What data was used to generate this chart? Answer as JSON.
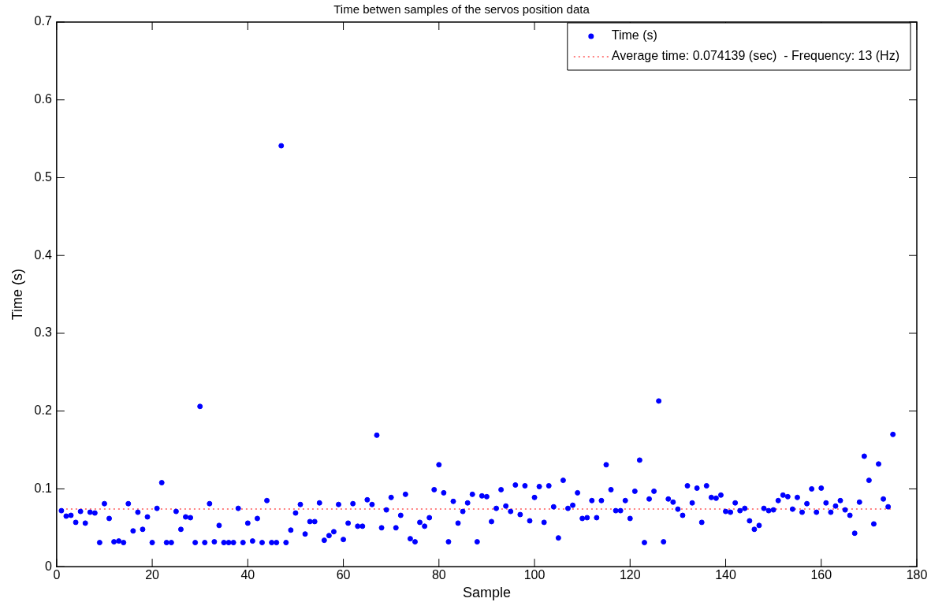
{
  "chart_data": {
    "type": "scatter",
    "title": "Time betwen samples of the servos position data",
    "xlabel": "Sample",
    "ylabel": "Time (s)",
    "x": [
      1,
      2,
      3,
      4,
      5,
      6,
      7,
      8,
      9,
      10,
      11,
      12,
      13,
      14,
      15,
      16,
      17,
      18,
      19,
      20,
      21,
      22,
      23,
      24,
      25,
      26,
      27,
      28,
      29,
      30,
      31,
      32,
      33,
      34,
      35,
      36,
      37,
      38,
      39,
      40,
      41,
      42,
      43,
      44,
      45,
      46,
      47,
      48,
      49,
      50,
      51,
      52,
      53,
      54,
      55,
      56,
      57,
      58,
      59,
      60,
      61,
      62,
      63,
      64,
      65,
      66,
      67,
      68,
      69,
      70,
      71,
      72,
      73,
      74,
      75,
      76,
      77,
      78,
      79,
      80,
      81,
      82,
      83,
      84,
      85,
      86,
      87,
      88,
      89,
      90,
      91,
      92,
      93,
      94,
      95,
      96,
      97,
      98,
      99,
      100,
      101,
      102,
      103,
      104,
      105,
      106,
      107,
      108,
      109,
      110,
      111,
      112,
      113,
      114,
      115,
      116,
      117,
      118,
      119,
      120,
      121,
      122,
      123,
      124,
      125,
      126,
      127,
      128,
      129,
      130,
      131,
      132,
      133,
      134,
      135,
      136,
      137,
      138,
      139,
      140,
      141,
      142,
      143,
      144,
      145,
      146,
      147,
      148,
      149,
      150,
      151,
      152,
      153,
      154,
      155,
      156,
      157,
      158,
      159,
      160,
      161,
      162,
      163,
      164,
      165,
      166,
      167,
      168,
      169,
      170,
      171,
      172,
      173,
      174,
      175
    ],
    "series": [
      {
        "name": "Time (s)",
        "color": "#0000ff",
        "values": [
          0.072,
          0.065,
          0.066,
          0.057,
          0.071,
          0.056,
          0.07,
          0.069,
          0.031,
          0.081,
          0.062,
          0.032,
          0.033,
          0.031,
          0.081,
          0.046,
          0.07,
          0.048,
          0.064,
          0.031,
          0.075,
          0.108,
          0.031,
          0.031,
          0.071,
          0.048,
          0.064,
          0.063,
          0.031,
          0.206,
          0.031,
          0.081,
          0.032,
          0.053,
          0.031,
          0.031,
          0.031,
          0.075,
          0.031,
          0.056,
          0.033,
          0.062,
          0.031,
          0.085,
          0.031,
          0.031,
          0.541,
          0.031,
          0.047,
          0.069,
          0.08,
          0.042,
          0.058,
          0.058,
          0.082,
          0.034,
          0.04,
          0.045,
          0.08,
          0.035,
          0.056,
          0.081,
          0.052,
          0.052,
          0.086,
          0.08,
          0.169,
          0.05,
          0.073,
          0.089,
          0.05,
          0.066,
          0.093,
          0.036,
          0.032,
          0.057,
          0.052,
          0.063,
          0.099,
          0.131,
          0.095,
          0.032,
          0.084,
          0.056,
          0.071,
          0.082,
          0.093,
          0.032,
          0.091,
          0.09,
          0.058,
          0.075,
          0.099,
          0.078,
          0.071,
          0.105,
          0.067,
          0.104,
          0.059,
          0.089,
          0.103,
          0.057,
          0.104,
          0.077,
          0.037,
          0.111,
          0.075,
          0.079,
          0.095,
          0.062,
          0.063,
          0.085,
          0.063,
          0.085,
          0.131,
          0.099,
          0.072,
          0.072,
          0.085,
          0.062,
          0.097,
          0.137,
          0.031,
          0.087,
          0.097,
          0.213,
          0.032,
          0.087,
          0.083,
          0.074,
          0.066,
          0.104,
          0.082,
          0.101,
          0.057,
          0.104,
          0.089,
          0.088,
          0.092,
          0.071,
          0.07,
          0.082,
          0.072,
          0.075,
          0.059,
          0.048,
          0.053,
          0.075,
          0.072,
          0.073,
          0.085,
          0.092,
          0.09,
          0.074,
          0.089,
          0.07,
          0.081,
          0.1,
          0.07,
          0.101,
          0.082,
          0.07,
          0.078,
          0.085,
          0.073,
          0.066,
          0.043,
          0.083,
          0.142,
          0.111,
          0.055,
          0.132,
          0.087,
          0.077,
          0.17
        ]
      }
    ],
    "ref_lines": [
      {
        "axis": "y",
        "value": 0.074139,
        "label": "Average time: 0.074139 (sec)  - Frequency: 13 (Hz)",
        "color": "#ff0000",
        "line_style": "dotted"
      }
    ],
    "xlim": [
      0,
      180
    ],
    "xticks": [
      0,
      20,
      40,
      60,
      80,
      100,
      120,
      140,
      160,
      180
    ],
    "ylim": [
      0,
      0.7
    ],
    "yticks": [
      0,
      0.1,
      0.2,
      0.3,
      0.4,
      0.5,
      0.6,
      0.7
    ],
    "marker": "circle",
    "legend": "top right",
    "grid": false
  }
}
